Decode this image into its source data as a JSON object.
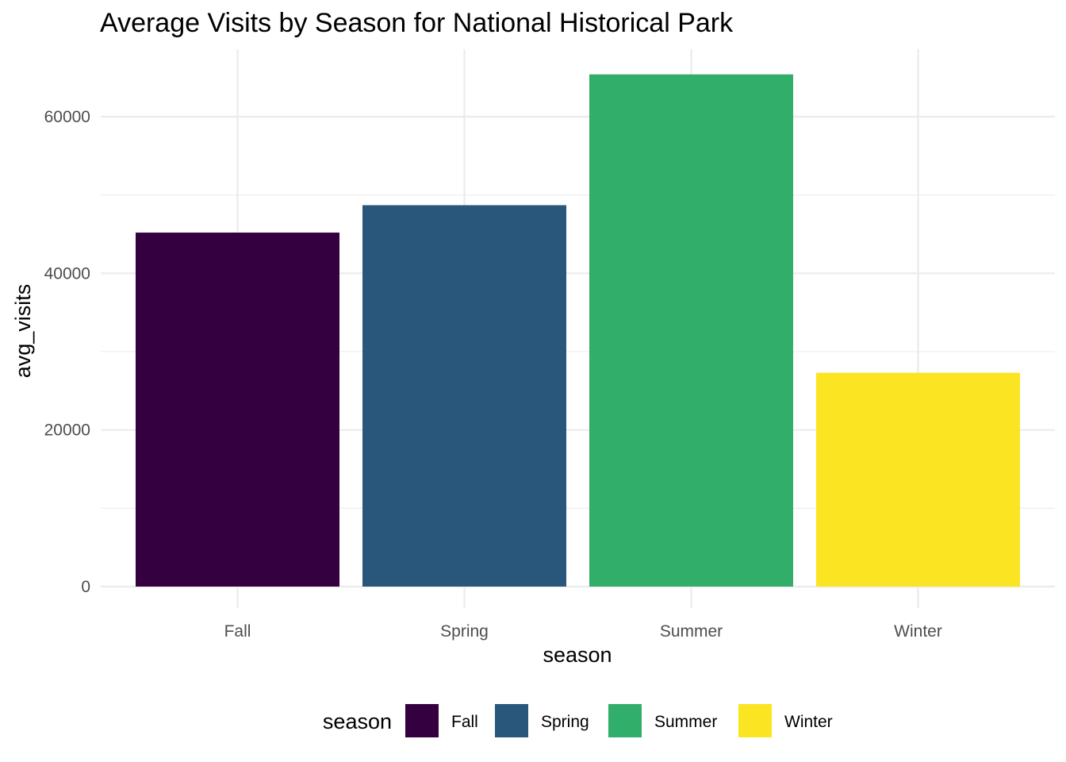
{
  "chart_data": {
    "type": "bar",
    "title": "Average Visits by Season for National Historical Park",
    "xlabel": "season",
    "ylabel": "avg_visits",
    "categories": [
      "Fall",
      "Spring",
      "Summer",
      "Winter"
    ],
    "values": [
      45200,
      48700,
      65400,
      27300
    ],
    "colors": [
      "#440154",
      "#2A5A80",
      "#30AE6A",
      "#FDE725"
    ],
    "bar_colors": [
      "#35003f",
      "#29577c",
      "#31ae6a",
      "#fbe421"
    ],
    "ylim": [
      0,
      68500
    ],
    "y_ticks": [
      0,
      20000,
      40000,
      60000
    ],
    "y_tick_labels": [
      "0",
      "20000",
      "40000",
      "60000"
    ],
    "grid": true,
    "legend": {
      "title": "season",
      "position": "bottom",
      "entries": [
        "Fall",
        "Spring",
        "Summer",
        "Winter"
      ]
    }
  }
}
